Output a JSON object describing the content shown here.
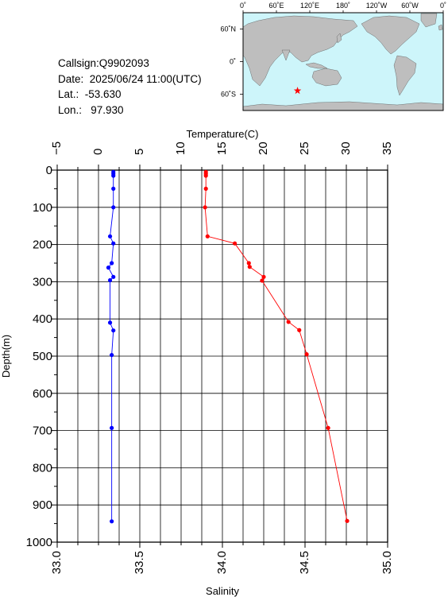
{
  "station": {
    "callsign": "Callsign:Q9902093",
    "date": "Date:  2025/06/24 11:00(UTC)",
    "lat": "Lat.:  -53.630",
    "lon": "Lon.:   97.930"
  },
  "map": {
    "top_labels": [
      "0˚",
      "60˚E",
      "120˚E",
      "180˚",
      "120˚W",
      "60˚W",
      "0˚"
    ],
    "left_labels": [
      "60˚N",
      "0˚",
      "60˚S"
    ],
    "ocean_color": "#cdf5fa",
    "land_color": "#bebebe",
    "marker": {
      "lon": 97.93,
      "lat": -53.63,
      "color": "#ff0000",
      "shape": "star"
    }
  },
  "chart_data": {
    "type": "line",
    "ylabel": "Depth(m)",
    "y_reversed": true,
    "ylim": [
      0,
      1000
    ],
    "y_ticks": [
      "0",
      "100",
      "200",
      "300",
      "400",
      "500",
      "600",
      "700",
      "800",
      "900",
      "1000"
    ],
    "temperature_axis": {
      "label": "Temperature(C)",
      "range": [
        -5,
        35
      ],
      "ticks": [
        "−5",
        "0",
        "5",
        "10",
        "15",
        "20",
        "25",
        "30",
        "35"
      ]
    },
    "salinity_axis": {
      "label": "Salinity",
      "range": [
        33.0,
        35.0
      ],
      "ticks": [
        "33.0",
        "33.5",
        "34.0",
        "34.5",
        "35.0"
      ]
    },
    "grid": true,
    "series": [
      {
        "axis": "temperature",
        "color": "#ff0000",
        "points": [
          [
            13.0,
            5
          ],
          [
            13.0,
            10
          ],
          [
            13.0,
            15
          ],
          [
            13.0,
            50
          ],
          [
            12.9,
            100
          ],
          [
            13.2,
            178
          ],
          [
            16.5,
            197
          ],
          [
            18.2,
            250
          ],
          [
            18.3,
            260
          ],
          [
            20.0,
            287
          ],
          [
            19.8,
            297
          ],
          [
            23.0,
            408
          ],
          [
            24.3,
            430
          ],
          [
            25.2,
            495
          ],
          [
            27.8,
            693
          ],
          [
            30.1,
            943
          ]
        ]
      },
      {
        "axis": "salinity",
        "color": "#0000ff",
        "points": [
          [
            33.34,
            5
          ],
          [
            33.34,
            10
          ],
          [
            33.34,
            15
          ],
          [
            33.34,
            50
          ],
          [
            33.34,
            100
          ],
          [
            33.32,
            178
          ],
          [
            33.34,
            197
          ],
          [
            33.33,
            250
          ],
          [
            33.31,
            262
          ],
          [
            33.34,
            287
          ],
          [
            33.32,
            296
          ],
          [
            33.32,
            410
          ],
          [
            33.34,
            431
          ],
          [
            33.33,
            497
          ],
          [
            33.33,
            693
          ],
          [
            33.33,
            944
          ]
        ]
      }
    ]
  }
}
